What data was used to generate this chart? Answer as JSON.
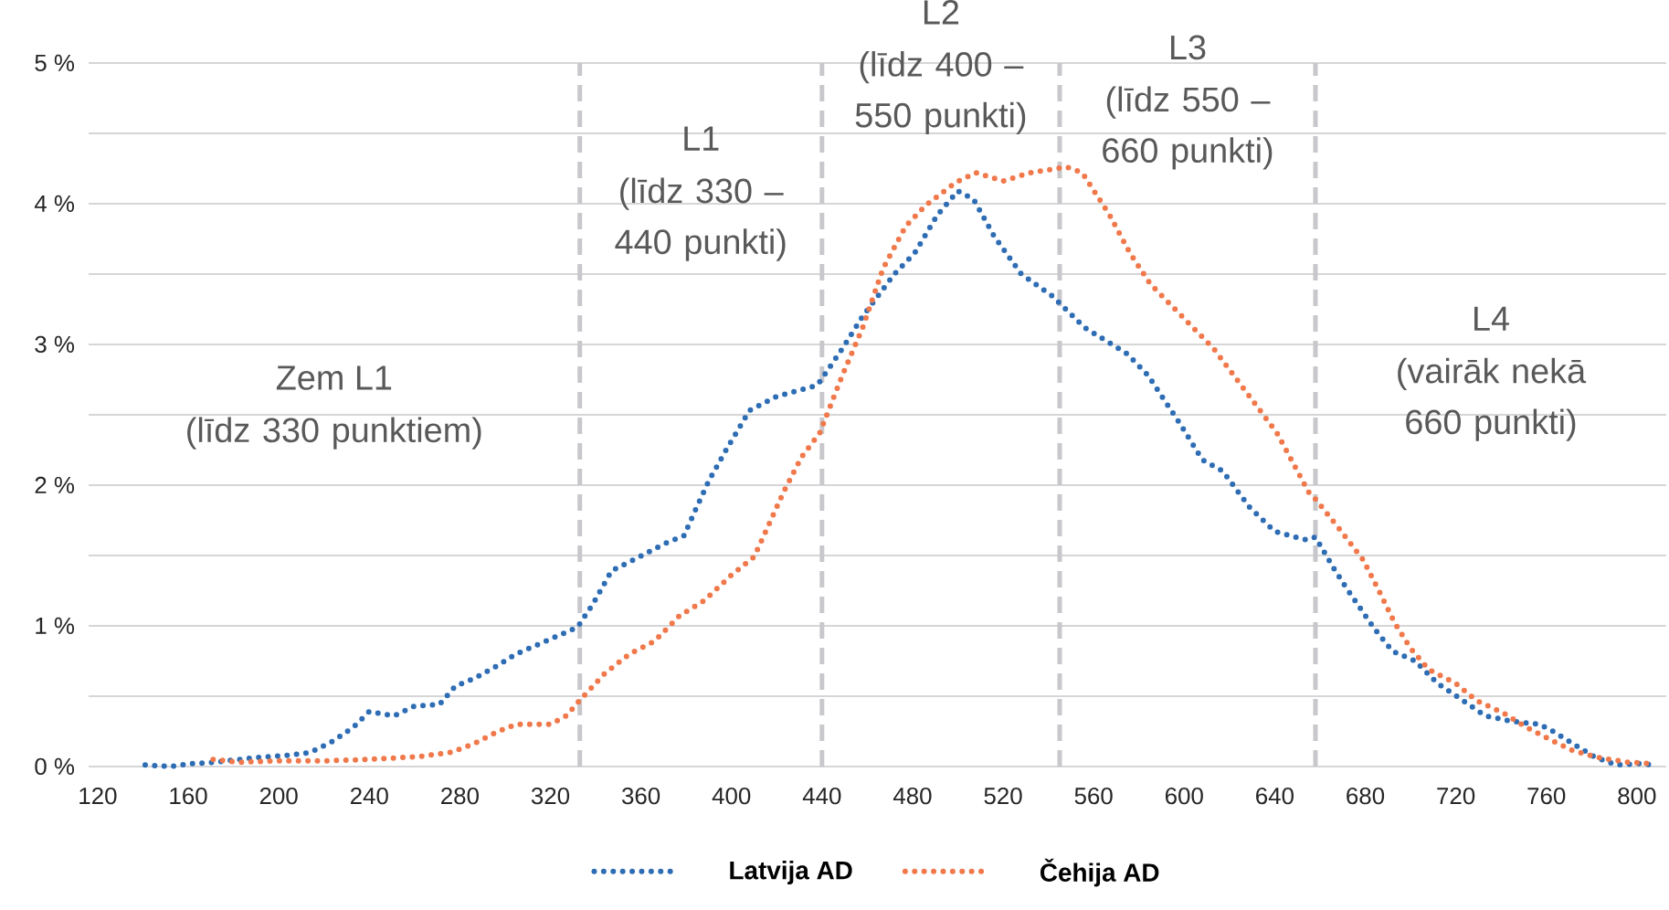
{
  "chart_data": {
    "type": "line",
    "xlim": [
      116,
      813
    ],
    "xticks": [
      120,
      160,
      200,
      240,
      280,
      320,
      360,
      400,
      440,
      480,
      520,
      560,
      600,
      640,
      680,
      720,
      760,
      800
    ],
    "ylim": [
      0,
      5
    ],
    "yticks": [
      {
        "value": 0,
        "label": "0 %"
      },
      {
        "value": 0.5,
        "label": null
      },
      {
        "value": 1,
        "label": "1 %"
      },
      {
        "value": 1.5,
        "label": null
      },
      {
        "value": 2,
        "label": "2 %"
      },
      {
        "value": 2.5,
        "label": null
      },
      {
        "value": 3,
        "label": "3 %"
      },
      {
        "value": 3.5,
        "label": null
      },
      {
        "value": 4,
        "label": "4 %"
      },
      {
        "value": 4.5,
        "label": null
      },
      {
        "value": 5,
        "label": "5 %"
      }
    ],
    "grid": "y",
    "legend": "bottom",
    "line_style": "dotted",
    "series": [
      {
        "name": "Latvija AD",
        "color": "#2e6db4",
        "x": [
          141,
          152,
          162,
          172,
          188,
          205,
          214,
          224,
          233,
          240,
          251,
          260,
          271,
          278,
          287,
          297,
          305,
          315,
          325,
          332,
          339,
          347,
          357,
          370,
          379,
          384,
          390,
          398,
          408,
          420,
          438,
          449,
          458,
          472,
          481,
          491,
          500,
          507,
          516,
          528,
          542,
          556,
          575,
          584,
          598,
          608,
          617,
          629,
          640,
          654,
          658,
          666,
          672,
          678,
          684,
          692,
          702,
          712,
          723,
          733,
          745,
          757,
          763,
          772,
          781,
          791,
          801,
          807
        ],
        "values": [
          0.01,
          0.0,
          0.02,
          0.03,
          0.06,
          0.08,
          0.1,
          0.18,
          0.28,
          0.39,
          0.36,
          0.43,
          0.44,
          0.57,
          0.63,
          0.72,
          0.8,
          0.87,
          0.94,
          0.99,
          1.16,
          1.39,
          1.47,
          1.58,
          1.64,
          1.82,
          2.03,
          2.26,
          2.53,
          2.63,
          2.71,
          2.97,
          3.2,
          3.5,
          3.65,
          3.92,
          4.09,
          4.03,
          3.77,
          3.5,
          3.34,
          3.12,
          2.93,
          2.78,
          2.44,
          2.18,
          2.1,
          1.84,
          1.67,
          1.61,
          1.63,
          1.41,
          1.26,
          1.12,
          0.98,
          0.82,
          0.75,
          0.59,
          0.47,
          0.36,
          0.32,
          0.3,
          0.25,
          0.16,
          0.07,
          0.01,
          0.02,
          0.01
        ]
      },
      {
        "name": "Čehija AD",
        "color": "#f0784a",
        "x": [
          171,
          182,
          200,
          221,
          240,
          262,
          276,
          286,
          297,
          305,
          320,
          327,
          333,
          344,
          355,
          366,
          377,
          388,
          400,
          410,
          416,
          423,
          431,
          439,
          449,
          458,
          467,
          477,
          486,
          499,
          508,
          520,
          532,
          548,
          555,
          567,
          576,
          585,
          599,
          613,
          627,
          641,
          655,
          658,
          669,
          679,
          686,
          693,
          700,
          708,
          720,
          729,
          741,
          751,
          763,
          772,
          784,
          796,
          807
        ],
        "values": [
          0.05,
          0.03,
          0.04,
          0.04,
          0.05,
          0.07,
          0.1,
          0.16,
          0.25,
          0.3,
          0.3,
          0.36,
          0.47,
          0.66,
          0.8,
          0.89,
          1.07,
          1.18,
          1.36,
          1.49,
          1.7,
          1.95,
          2.2,
          2.37,
          2.78,
          3.12,
          3.54,
          3.84,
          3.99,
          4.15,
          4.22,
          4.16,
          4.22,
          4.26,
          4.22,
          3.92,
          3.65,
          3.43,
          3.2,
          2.97,
          2.67,
          2.37,
          1.95,
          1.9,
          1.68,
          1.47,
          1.25,
          1.02,
          0.84,
          0.69,
          0.59,
          0.47,
          0.38,
          0.28,
          0.18,
          0.11,
          0.06,
          0.03,
          0.02
        ]
      }
    ],
    "ref_lines": [
      {
        "axis": "x",
        "value": 333,
        "color": "#c8c8cc",
        "line_style": "dashed"
      },
      {
        "axis": "x",
        "value": 440,
        "color": "#c8c8cc",
        "line_style": "dashed"
      },
      {
        "axis": "x",
        "value": 545,
        "color": "#c8c8cc",
        "line_style": "dashed"
      },
      {
        "axis": "x",
        "value": 658,
        "color": "#c8c8cc",
        "line_style": "dashed"
      }
    ],
    "annotations": [
      "Zem L1",
      "(līdz 330 punktiem)",
      "L1",
      "(līdz 330 – 440 punkti)",
      "L2",
      "(līdz 400 – 550 punkti)",
      "L3",
      "(līdz 550 – 660 punkti)",
      "L4",
      "(vairāk nekā 660 punkti)"
    ]
  }
}
